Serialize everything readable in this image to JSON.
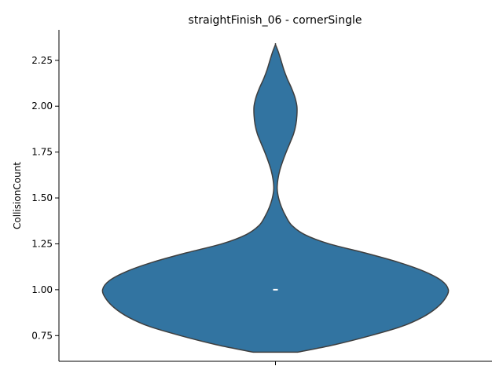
{
  "chart_data": {
    "type": "violin",
    "title": "straightFinish_06 - cornerSingle",
    "xlabel": "",
    "ylabel": "CollisionCount",
    "ylim": [
      0.61,
      2.416
    ],
    "yticks": [
      0.75,
      1.0,
      1.25,
      1.5,
      1.75,
      2.0,
      2.25
    ],
    "ytick_labels": [
      "0.75",
      "1.00",
      "1.25",
      "1.50",
      "1.75",
      "2.00",
      "2.25"
    ],
    "x_tick_labels": [
      ""
    ],
    "grid": false,
    "color": "#3274a1",
    "edge_color": "#3f3f3f",
    "series": [
      {
        "density_profile": {
          "y": [
            0.66,
            0.7,
            0.75,
            0.8,
            0.85,
            0.9,
            0.95,
            1.0,
            1.05,
            1.1,
            1.15,
            1.2,
            1.25,
            1.3,
            1.35,
            1.4,
            1.45,
            1.5,
            1.55,
            1.6,
            1.65,
            1.7,
            1.75,
            1.8,
            1.85,
            1.9,
            1.95,
            2.0,
            2.05,
            2.1,
            2.15,
            2.2,
            2.25,
            2.3,
            2.336
          ],
          "rel_width": [
            0.13,
            0.34,
            0.55,
            0.73,
            0.85,
            0.93,
            0.98,
            1.0,
            0.96,
            0.86,
            0.71,
            0.52,
            0.31,
            0.17,
            0.095,
            0.06,
            0.035,
            0.018,
            0.01,
            0.014,
            0.025,
            0.042,
            0.062,
            0.084,
            0.105,
            0.118,
            0.124,
            0.124,
            0.112,
            0.092,
            0.068,
            0.048,
            0.032,
            0.015,
            0.0
          ]
        },
        "median": 1.0,
        "q1": 1.0,
        "q3": 1.0
      }
    ]
  }
}
